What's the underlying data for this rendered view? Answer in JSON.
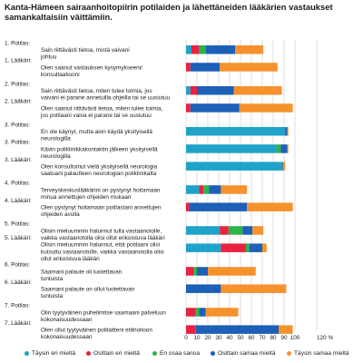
{
  "chart_data": {
    "type": "bar",
    "orientation": "horizontal",
    "stacked": true,
    "title": "Kanta-Hämeen sairaanhoitopiirin potilaiden ja lähettäneiden lääkärien vastaukset samankaltaisiin väittämiin.",
    "xlim": [
      0,
      120
    ],
    "x_ticks": [
      "0",
      "10",
      "20",
      "30",
      "40",
      "50",
      "60",
      "70",
      "80",
      "90",
      "100",
      "120 %"
    ],
    "legend_position": "bottom",
    "series": [
      {
        "name": "Täysin eri mieltä",
        "color": "#1fa3c8"
      },
      {
        "name": "Osittain eri mieltä",
        "color": "#e8223f"
      },
      {
        "name": "En osaa sanoa",
        "color": "#2db34a"
      },
      {
        "name": "Osittain samaa mieltä",
        "color": "#1d60b8"
      },
      {
        "name": "Täysin samaa mieltä",
        "color": "#f5922e"
      }
    ],
    "rows": [
      {
        "label": [
          "1. Potilas:",
          "Sain riittävästi tietoa, mistä vaivani",
          "johtuu"
        ],
        "values": [
          5,
          7,
          6,
          27,
          26
        ],
        "group": 1
      },
      {
        "label": [
          "1. Lääkäri:",
          "Olen saanut vastauksen kysymykseeni/",
          "konsultaatiooni"
        ],
        "values": [
          0,
          4,
          0,
          27,
          53
        ],
        "group": 1
      },
      {
        "label": [
          "2. Potilas:",
          "Sain riittävästi tietoa, miten tulee toimia, jos",
          "vaivani ei parane annetuilla ohjeilla tai se uusiutuu"
        ],
        "values": [
          4,
          6,
          0,
          34,
          44
        ],
        "group": 2
      },
      {
        "label": [
          "2. Lääkäri:",
          "Olen saanut riittävästi tietoa, miten tulee toimia,",
          "jos potilaani vaiva ei parane tai se uusiutuu"
        ],
        "values": [
          0,
          4,
          0,
          45,
          49
        ],
        "group": 2
      },
      {
        "label": [
          "3. Potilas:",
          "En ole käynyt, mutta aion käydä yksityisellä",
          "neurologilla"
        ],
        "values": [
          91,
          0,
          0,
          2,
          1
        ],
        "group": 3
      },
      {
        "label": [
          "3. Potilas:",
          "Kävin poliklinikkakontaktin jälkeen yksityisellä",
          "neurologilla"
        ],
        "values": [
          83,
          0,
          4,
          6,
          1
        ],
        "group": 3
      },
      {
        "label": [
          "3. Lääkäri:",
          "Olen konsultoinut vielä yksityisellä neurologia",
          "saatuani palautteen neurologian poliklinikalta"
        ],
        "values": [
          88,
          0,
          0,
          1,
          2
        ],
        "group": 3
      },
      {
        "label": [
          "4. Potilas:",
          "Terveyskeskuslääkärini on pystynyt hoitamaan",
          "minua annettujen ohjeiden mukaan"
        ],
        "values": [
          12,
          4,
          5,
          11,
          24
        ],
        "group": 4
      },
      {
        "label": [
          "4. Lääkäri:",
          "Olen pystynyt hoitamaan potilastani annettujen",
          "ohjeiden avulla"
        ],
        "values": [
          0,
          3,
          0,
          53,
          42
        ],
        "group": 4
      },
      {
        "label": [
          "5. Potilas:",
          "Olisin mieluummin halunnut tulla vastaanotolle,",
          "vaikka vastaanotolla olisi ollut erikoistuva lääkäri"
        ],
        "values": [
          31,
          8,
          13,
          9,
          10
        ],
        "group": 5
      },
      {
        "label": [
          "5. Lääkäri:",
          "Olisin mieluummin halunnut, että potilaani olisi",
          "kutsuttu vastaanotolle, vaikka vastaanotolla olisi",
          "ollut erikoistuva lääkäri"
        ],
        "values": [
          32,
          23,
          3,
          12,
          4
        ],
        "group": 5
      },
      {
        "label": [
          "6. Potilas:",
          "Saamani palaute oli luotettavan",
          "tuntuista"
        ],
        "values": [
          0,
          7,
          3,
          10,
          44
        ],
        "group": 6
      },
      {
        "label": [
          "6. Lääkäri:",
          "Saamani palaute on ollut luotettavan",
          "tuntuista"
        ],
        "values": [
          0,
          0,
          0,
          32,
          60
        ],
        "group": 6
      },
      {
        "label": [
          "7. Potilas:",
          "Olin tyytyväinen puhelimitse saamaani palveluun",
          "kokonaisuudessaan"
        ],
        "values": [
          0,
          9,
          3,
          6,
          30
        ],
        "group": 7
      },
      {
        "label": [
          "7. Lääkäri:",
          "Olen ollut tyytyväinen potilaitteni etähoitoon",
          "kokonaisuudessaan"
        ],
        "values": [
          0,
          9,
          0,
          76,
          13
        ],
        "group": 7
      }
    ]
  }
}
